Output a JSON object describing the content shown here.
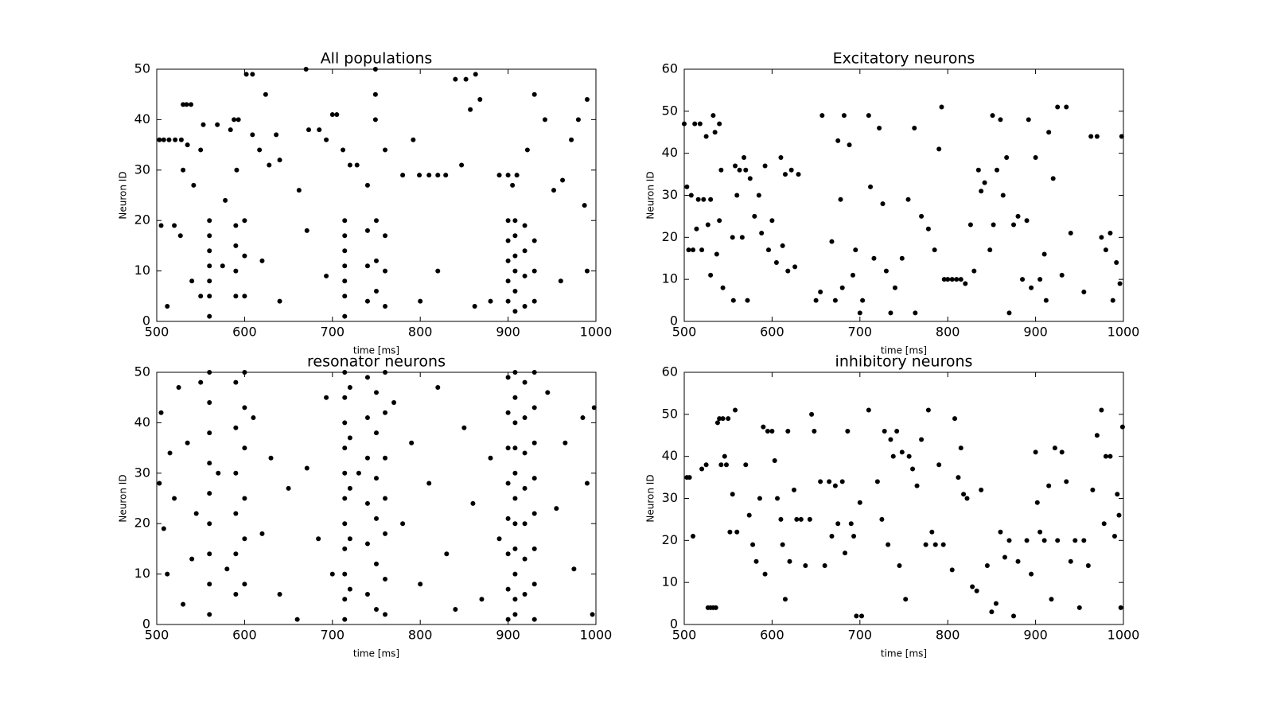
{
  "chart_data": [
    {
      "type": "scatter",
      "title": "All populations",
      "x_label": "time [ms]",
      "y_label": "Neuron ID",
      "color": "#000000",
      "xlim": [
        500,
        1000
      ],
      "ylim": [
        0,
        50
      ],
      "xticks": [
        500,
        600,
        700,
        800,
        900,
        1000
      ],
      "yticks": [
        0,
        10,
        20,
        30,
        40,
        50
      ],
      "x": [
        503,
        508,
        514,
        521,
        528,
        530,
        534,
        539,
        535,
        530,
        542,
        550,
        553,
        569,
        578,
        584,
        588,
        593,
        591,
        602,
        609,
        609,
        617,
        624,
        628,
        636,
        640,
        662,
        670,
        673,
        685,
        693,
        700,
        705,
        712,
        720,
        728,
        740,
        749,
        749,
        749,
        760,
        780,
        792,
        799,
        810,
        820,
        829,
        840,
        847,
        852,
        857,
        863,
        868,
        890,
        900,
        905,
        910,
        922,
        930,
        942,
        952,
        962,
        972,
        980,
        987,
        990,
        560,
        560,
        560,
        560,
        560,
        560,
        560,
        590,
        590,
        590,
        590,
        600,
        600,
        600,
        714,
        714,
        714,
        714,
        714,
        714,
        714,
        740,
        740,
        740,
        750,
        750,
        750,
        760,
        760,
        760,
        900,
        900,
        900,
        900,
        900,
        908,
        908,
        908,
        908,
        908,
        908,
        919,
        919,
        919,
        919,
        930,
        930,
        930,
        505,
        512,
        520,
        527,
        540,
        550,
        575,
        620,
        640,
        671,
        693,
        800,
        820,
        862,
        880,
        960,
        990
      ],
      "values": [
        36,
        36,
        36,
        36,
        36,
        43,
        43,
        43,
        35,
        30,
        27,
        34,
        39,
        39,
        24,
        38,
        40,
        40,
        30,
        49,
        49,
        37,
        34,
        45,
        31,
        37,
        32,
        26,
        50,
        38,
        38,
        36,
        41,
        41,
        34,
        31,
        31,
        27,
        50,
        45,
        40,
        34,
        29,
        36,
        29,
        29,
        29,
        29,
        48,
        31,
        48,
        42,
        49,
        44,
        29,
        29,
        27,
        29,
        34,
        45,
        40,
        26,
        28,
        36,
        40,
        23,
        44,
        20,
        17,
        14,
        11,
        8,
        5,
        1,
        19,
        15,
        10,
        5,
        20,
        13,
        5,
        20,
        17,
        14,
        11,
        8,
        5,
        1,
        18,
        11,
        4,
        20,
        12,
        6,
        17,
        10,
        3,
        20,
        16,
        12,
        8,
        4,
        20,
        17,
        13,
        10,
        6,
        2,
        19,
        14,
        9,
        3,
        16,
        10,
        4,
        19,
        3,
        19,
        17,
        8,
        5,
        11,
        12,
        4,
        18,
        9,
        4,
        10,
        3,
        4,
        8,
        10
      ]
    },
    {
      "type": "scatter",
      "title": "Excitatory neurons",
      "x_label": "time [ms]",
      "y_label": "Neuron ID",
      "color": "#000000",
      "xlim": [
        500,
        1000
      ],
      "ylim": [
        0,
        60
      ],
      "xticks": [
        500,
        600,
        700,
        800,
        900,
        1000
      ],
      "yticks": [
        0,
        10,
        20,
        30,
        40,
        50,
        60
      ],
      "x": [
        500,
        503,
        505,
        508,
        510,
        512,
        514,
        516,
        518,
        520,
        522,
        525,
        527,
        530,
        530,
        533,
        535,
        537,
        540,
        540,
        542,
        544,
        555,
        556,
        558,
        560,
        563,
        566,
        568,
        570,
        572,
        575,
        580,
        585,
        588,
        592,
        596,
        600,
        605,
        610,
        612,
        615,
        618,
        622,
        626,
        630,
        650,
        655,
        657,
        668,
        672,
        675,
        678,
        680,
        682,
        688,
        692,
        695,
        700,
        703,
        710,
        712,
        716,
        722,
        726,
        730,
        735,
        740,
        748,
        755,
        762,
        763,
        770,
        778,
        785,
        790,
        793,
        796,
        800,
        805,
        810,
        815,
        820,
        826,
        830,
        835,
        838,
        842,
        848,
        851,
        852,
        856,
        860,
        863,
        867,
        870,
        875,
        880,
        885,
        890,
        892,
        895,
        900,
        905,
        910,
        912,
        915,
        920,
        925,
        930,
        935,
        940,
        955,
        963,
        970,
        975,
        980,
        985,
        988,
        992,
        996,
        998
      ],
      "values": [
        47,
        32,
        17,
        30,
        17,
        47,
        22,
        29,
        47,
        17,
        29,
        44,
        23,
        29,
        11,
        49,
        45,
        16,
        47,
        24,
        36,
        8,
        20,
        5,
        37,
        30,
        36,
        20,
        39,
        36,
        5,
        34,
        25,
        30,
        21,
        37,
        17,
        24,
        14,
        39,
        18,
        35,
        12,
        36,
        13,
        35,
        5,
        7,
        49,
        19,
        5,
        43,
        29,
        8,
        49,
        42,
        11,
        17,
        2,
        5,
        49,
        32,
        15,
        46,
        28,
        12,
        2,
        8,
        15,
        29,
        46,
        2,
        25,
        22,
        17,
        41,
        51,
        10,
        10,
        10,
        10,
        10,
        9,
        23,
        12,
        36,
        31,
        33,
        17,
        49,
        23,
        36,
        48,
        30,
        39,
        2,
        23,
        25,
        10,
        24,
        48,
        8,
        39,
        10,
        16,
        5,
        45,
        34,
        51,
        11,
        51,
        21,
        7,
        44,
        44,
        20,
        17,
        21,
        5,
        14,
        9,
        44
      ]
    },
    {
      "type": "scatter",
      "title": "resonator neurons",
      "x_label": "time [ms]",
      "y_label": "Neuron ID",
      "color": "#000000",
      "xlim": [
        500,
        1000
      ],
      "ylim": [
        0,
        50
      ],
      "xticks": [
        500,
        600,
        700,
        800,
        900,
        1000
      ],
      "yticks": [
        0,
        10,
        20,
        30,
        40,
        50
      ],
      "x": [
        560,
        560,
        560,
        560,
        560,
        560,
        560,
        560,
        560,
        590,
        590,
        590,
        590,
        590,
        590,
        600,
        600,
        600,
        600,
        600,
        600,
        714,
        714,
        714,
        714,
        714,
        714,
        714,
        714,
        714,
        714,
        714,
        720,
        720,
        720,
        720,
        720,
        740,
        740,
        740,
        740,
        740,
        740,
        750,
        750,
        750,
        750,
        750,
        750,
        760,
        760,
        760,
        760,
        760,
        760,
        760,
        900,
        900,
        900,
        900,
        900,
        900,
        900,
        900,
        908,
        908,
        908,
        908,
        908,
        908,
        908,
        908,
        908,
        908,
        908,
        919,
        919,
        919,
        919,
        919,
        919,
        919,
        930,
        930,
        930,
        930,
        930,
        930,
        930,
        930,
        503,
        505,
        508,
        512,
        515,
        520,
        525,
        530,
        535,
        540,
        545,
        550,
        570,
        580,
        610,
        620,
        630,
        640,
        650,
        660,
        671,
        684,
        693,
        700,
        730,
        770,
        780,
        790,
        800,
        810,
        820,
        830,
        840,
        850,
        860,
        870,
        880,
        890,
        945,
        955,
        965,
        975,
        985,
        990,
        996,
        998
      ],
      "values": [
        50,
        44,
        38,
        32,
        26,
        20,
        14,
        8,
        2,
        48,
        39,
        30,
        22,
        14,
        6,
        50,
        43,
        35,
        25,
        17,
        8,
        50,
        45,
        40,
        35,
        30,
        25,
        20,
        15,
        10,
        5,
        1,
        47,
        37,
        27,
        17,
        7,
        49,
        41,
        33,
        24,
        16,
        6,
        46,
        38,
        29,
        21,
        12,
        3,
        50,
        42,
        33,
        25,
        18,
        9,
        2,
        49,
        42,
        35,
        28,
        21,
        14,
        7,
        1,
        50,
        45,
        40,
        35,
        30,
        25,
        20,
        15,
        10,
        5,
        2,
        48,
        41,
        34,
        27,
        20,
        13,
        6,
        50,
        43,
        36,
        29,
        22,
        15,
        8,
        1,
        28,
        42,
        19,
        10,
        34,
        25,
        47,
        4,
        36,
        13,
        22,
        48,
        30,
        11,
        41,
        18,
        33,
        6,
        27,
        1,
        31,
        17,
        45,
        10,
        30,
        44,
        20,
        36,
        8,
        28,
        47,
        14,
        3,
        39,
        24,
        5,
        33,
        17,
        46,
        23,
        36,
        11,
        41,
        28,
        2,
        43
      ]
    },
    {
      "type": "scatter",
      "title": "inhibitory neurons",
      "x_label": "time [ms]",
      "y_label": "Neuron ID",
      "color": "#000000",
      "xlim": [
        500,
        1000
      ],
      "ylim": [
        0,
        60
      ],
      "xticks": [
        500,
        600,
        700,
        800,
        900,
        1000
      ],
      "yticks": [
        0,
        10,
        20,
        30,
        40,
        50,
        60
      ],
      "x": [
        503,
        506,
        510,
        520,
        525,
        527,
        530,
        533,
        536,
        538,
        540,
        542,
        544,
        546,
        548,
        550,
        552,
        555,
        558,
        560,
        570,
        574,
        578,
        582,
        586,
        590,
        592,
        595,
        600,
        603,
        606,
        610,
        612,
        615,
        618,
        620,
        625,
        628,
        633,
        638,
        643,
        645,
        648,
        655,
        660,
        665,
        668,
        672,
        675,
        680,
        683,
        686,
        690,
        693,
        696,
        700,
        702,
        710,
        720,
        725,
        728,
        732,
        735,
        738,
        742,
        745,
        748,
        752,
        756,
        760,
        765,
        770,
        775,
        778,
        782,
        786,
        790,
        795,
        805,
        808,
        812,
        815,
        818,
        822,
        828,
        833,
        838,
        845,
        850,
        855,
        860,
        865,
        870,
        875,
        880,
        890,
        895,
        900,
        902,
        905,
        910,
        915,
        918,
        922,
        925,
        930,
        935,
        940,
        945,
        950,
        955,
        960,
        965,
        970,
        975,
        978,
        980,
        985,
        990,
        993,
        995,
        997,
        999
      ],
      "values": [
        35,
        35,
        21,
        37,
        38,
        4,
        4,
        4,
        4,
        48,
        49,
        38,
        49,
        40,
        38,
        49,
        22,
        31,
        51,
        22,
        38,
        26,
        19,
        15,
        30,
        47,
        12,
        46,
        46,
        39,
        30,
        25,
        19,
        6,
        46,
        15,
        32,
        25,
        25,
        14,
        25,
        50,
        46,
        34,
        14,
        34,
        21,
        33,
        24,
        34,
        17,
        46,
        24,
        21,
        2,
        29,
        2,
        51,
        34,
        25,
        46,
        19,
        44,
        40,
        46,
        14,
        41,
        6,
        40,
        37,
        33,
        44,
        19,
        51,
        22,
        19,
        38,
        19,
        13,
        49,
        35,
        42,
        31,
        30,
        9,
        8,
        32,
        14,
        3,
        5,
        22,
        16,
        20,
        2,
        15,
        20,
        12,
        41,
        29,
        22,
        20,
        33,
        6,
        42,
        20,
        41,
        34,
        15,
        20,
        4,
        20,
        14,
        32,
        45,
        51,
        24,
        40,
        40,
        21,
        31,
        26,
        4,
        47
      ]
    }
  ]
}
